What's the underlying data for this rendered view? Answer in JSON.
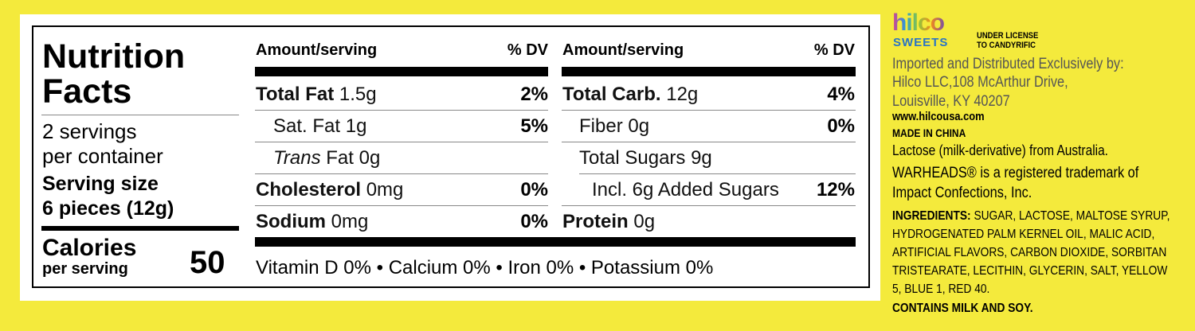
{
  "label": {
    "title": [
      "Nutrition",
      "Facts"
    ],
    "servings": [
      "2 servings",
      "per container"
    ],
    "serving_size": {
      "label": "Serving size",
      "value": "6 pieces (12g)"
    },
    "calories": {
      "label": "Calories",
      "sublabel": "per serving",
      "value": 50
    },
    "columns": [
      {
        "header": "Amount/serving",
        "dv_header": "% DV",
        "rows": [
          {
            "name": "Total Fat",
            "amount": "1.5g",
            "dv": "2%"
          },
          {
            "name": "Sat. Fat",
            "amount": "1g",
            "dv": "5%"
          },
          {
            "name_italic": "Trans",
            "name": "Fat",
            "amount": "0g"
          },
          {
            "name": "Cholesterol",
            "amount": "0mg",
            "dv": "0%"
          },
          {
            "name": "Sodium",
            "amount": "0mg",
            "dv": "0%"
          }
        ]
      },
      {
        "header": "Amount/serving",
        "dv_header": "% DV",
        "rows": [
          {
            "name": "Total Carb.",
            "amount": "12g",
            "dv": "4%"
          },
          {
            "name": "Fiber",
            "amount": "0g",
            "dv": "0%"
          },
          {
            "name": "Total Sugars",
            "amount": "9g"
          },
          {
            "name": "Incl. 6g Added Sugars",
            "dv": "12%"
          },
          {
            "name": "Protein",
            "amount": "0g"
          }
        ]
      }
    ],
    "vitamins": "Vitamin D 0% • Calcium 0% • Iron 0% • Potassium 0%"
  },
  "side": {
    "logo_top": "hilco",
    "logo_bottom": "SWEETS",
    "license": [
      "UNDER LICENSE",
      "TO CANDYRIFIC"
    ],
    "importer": [
      "Imported and Distributed Exclusively by:",
      "Hilco LLC,108 McArthur Drive,",
      "Louisville, KY 40207"
    ],
    "website": "www.hilcousa.com",
    "origin": "MADE IN CHINA",
    "lactose": "Lactose (milk-derivative) from Australia.",
    "trademark": [
      "WARHEADS® is a registered trademark of",
      "Impact Confections, Inc."
    ],
    "ingredients": {
      "label": "INGREDIENTS:",
      "lines": [
        "SUGAR, LACTOSE, MALTOSE SYRUP,",
        "HYDROGENATED PALM KERNEL OIL, MALIC ACID,",
        "ARTIFICIAL FLAVORS, CARBON DIOXIDE, SORBITAN",
        "TRISTEARATE, LECITHIN, GLYCERIN, SALT, YELLOW",
        "5, BLUE 1, RED 40."
      ]
    },
    "allergens": "CONTAINS MILK AND SOY."
  }
}
